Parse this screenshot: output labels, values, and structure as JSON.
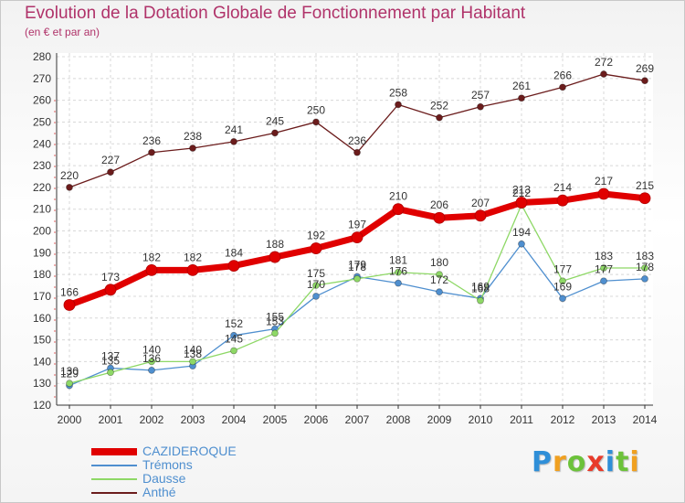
{
  "chart_data": {
    "type": "line",
    "title": "Evolution de la Dotation Globale de Fonctionnement par Habitant",
    "subtitle": "(en € et par an)",
    "x": [
      "2000",
      "2001",
      "2002",
      "2003",
      "2004",
      "2005",
      "2006",
      "2007",
      "2008",
      "2009",
      "2010",
      "2011",
      "2012",
      "2013",
      "2014"
    ],
    "ylim": [
      120,
      280
    ],
    "yticks": [
      120,
      130,
      140,
      150,
      160,
      170,
      180,
      190,
      200,
      210,
      220,
      230,
      240,
      250,
      260,
      270,
      280
    ],
    "grid": true,
    "legend_position": "bottom-left",
    "series": [
      {
        "name": "CAZIDEROQUE",
        "color": "#e00000",
        "values": [
          166,
          173,
          182,
          182,
          184,
          188,
          192,
          197,
          210,
          206,
          207,
          213,
          214,
          217,
          215
        ]
      },
      {
        "name": "Trémons",
        "color": "#4f8fcf",
        "values": [
          129,
          137,
          136,
          138,
          152,
          155,
          170,
          179,
          176,
          172,
          169,
          194,
          169,
          177,
          178
        ]
      },
      {
        "name": "Dausse",
        "color": "#8ed866",
        "values": [
          130,
          135,
          140,
          140,
          145,
          153,
          175,
          178,
          181,
          180,
          168,
          212,
          177,
          183,
          183
        ]
      },
      {
        "name": "Anthé",
        "color": "#6b1c1c",
        "values": [
          220,
          227,
          236,
          238,
          241,
          245,
          250,
          236,
          258,
          252,
          257,
          261,
          266,
          272,
          269
        ]
      }
    ]
  },
  "logo": {
    "letters": [
      "P",
      "r",
      "o",
      "x",
      "i",
      "t",
      "i"
    ],
    "colors": [
      "#2f8fd8",
      "#f0a020",
      "#6cc23a",
      "#e83a2a",
      "#2f8fd8",
      "#6cc23a",
      "#f0a020"
    ]
  }
}
